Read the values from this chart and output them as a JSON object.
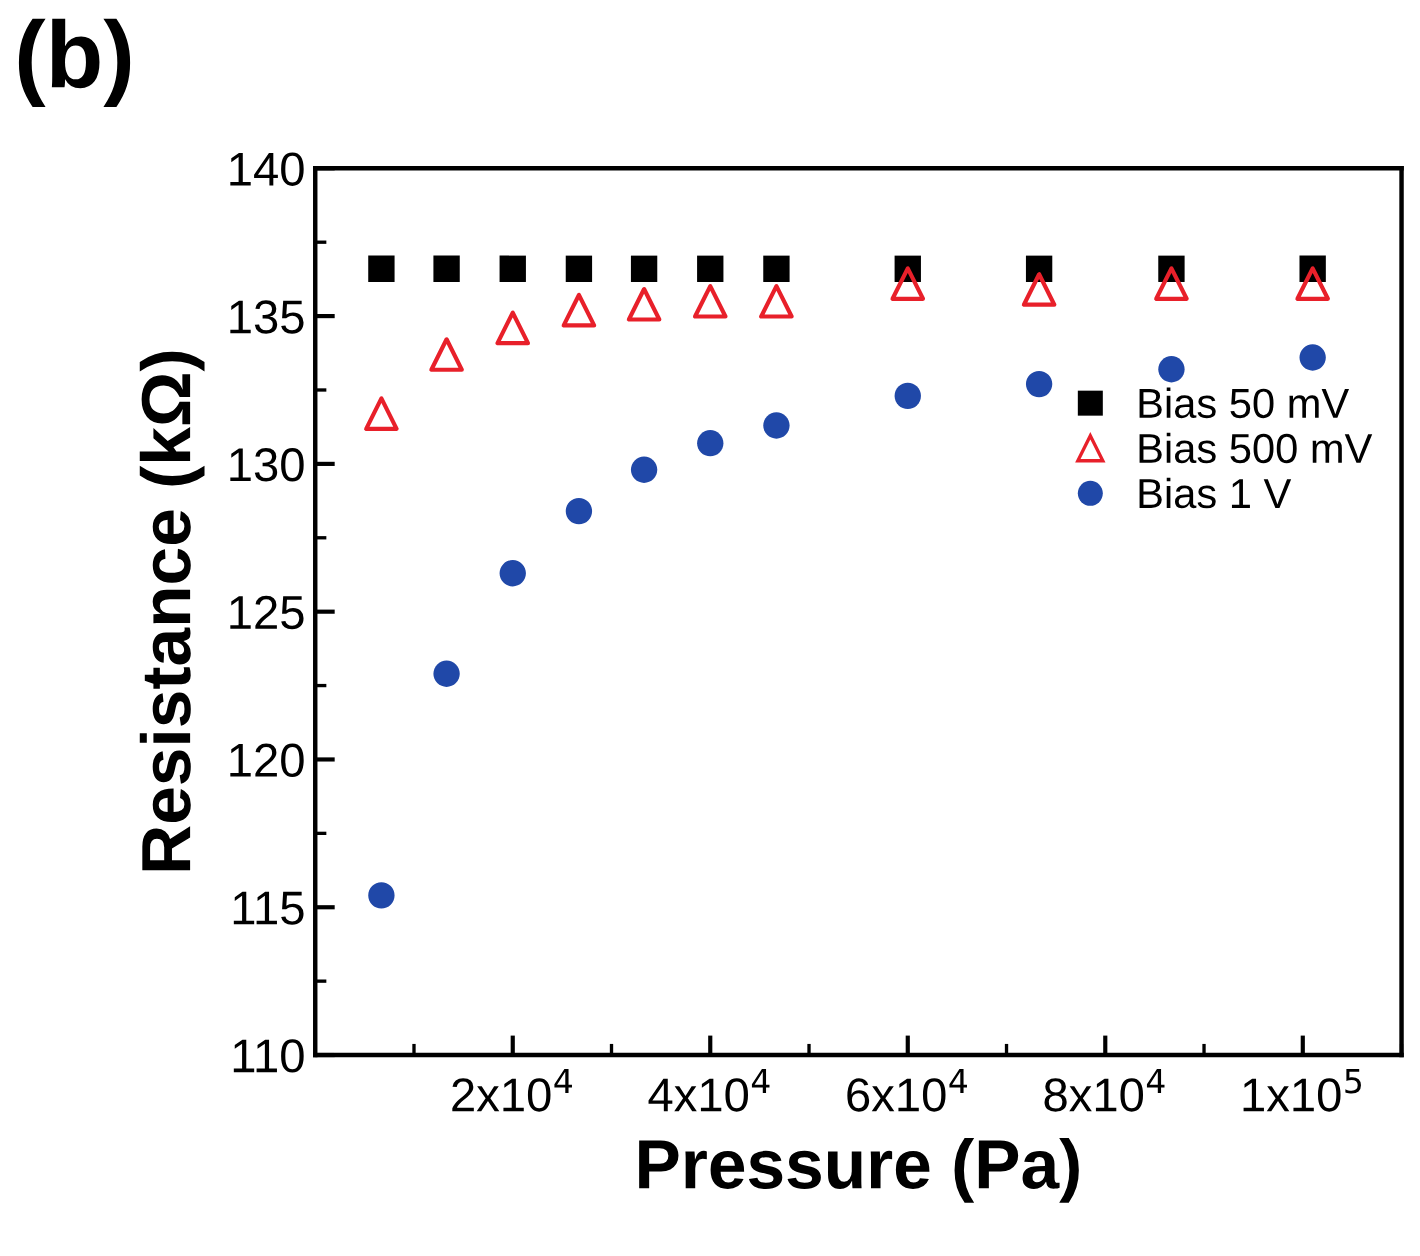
{
  "chart_data": {
    "type": "scatter",
    "xlabel": "Pressure (Pa)",
    "ylabel": "Resistance (kΩ)",
    "annotations": [
      "(b)"
    ],
    "x": [
      6700,
      13300,
      20000,
      26700,
      33300,
      40000,
      46700,
      60000,
      73300,
      86700,
      101000
    ],
    "series": [
      {
        "name": "Bias 50 mV",
        "color": "#000000",
        "marker": "square",
        "values": [
          136.6,
          136.6,
          136.6,
          136.6,
          136.6,
          136.6,
          136.6,
          136.6,
          136.6,
          136.6,
          136.6
        ]
      },
      {
        "name": "Bias 500 mV",
        "color": "#e8202a",
        "marker": "triangle",
        "values": [
          131.7,
          133.7,
          134.6,
          135.2,
          135.4,
          135.5,
          135.5,
          136.1,
          135.9,
          136.1,
          136.1
        ]
      },
      {
        "name": "Bias 1 V",
        "color": "#2048a8",
        "marker": "circle",
        "values": [
          115.4,
          122.9,
          126.3,
          128.4,
          129.8,
          130.7,
          131.3,
          132.3,
          132.7,
          133.2,
          133.6
        ]
      }
    ],
    "xlim": [
      0,
      110000
    ],
    "ylim": [
      110,
      140
    ],
    "xticks": [
      {
        "value": 20000,
        "label": "2x10$^{4}$"
      },
      {
        "value": 40000,
        "label": "4x10$^{4}$"
      },
      {
        "value": 60000,
        "label": "6x10$^{4}$"
      },
      {
        "value": 80000,
        "label": "8x10$^{4}$"
      },
      {
        "value": 100000,
        "label": "1x10$^{5}$"
      }
    ],
    "yticks": [
      110,
      115,
      120,
      125,
      130,
      135,
      140
    ],
    "grid": false,
    "legend": "right"
  }
}
